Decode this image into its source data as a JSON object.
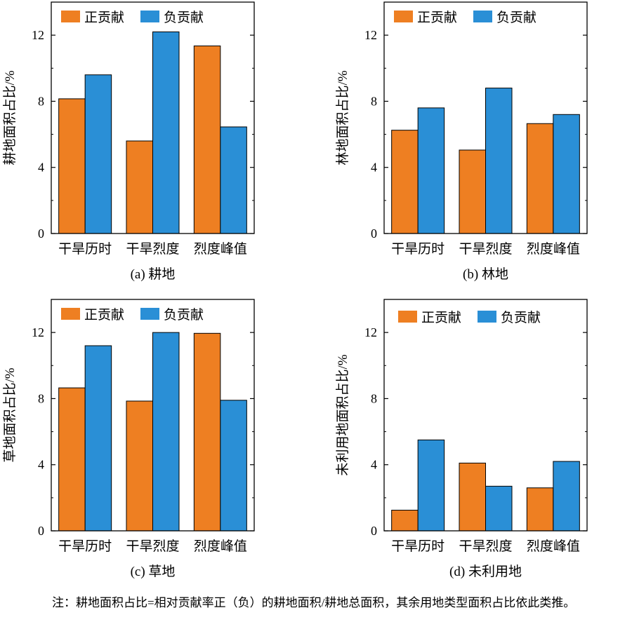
{
  "colors": {
    "positive": "#EE7F22",
    "negative": "#2A8FD6"
  },
  "note": "注：耕地面积占比=相对贡献率正（负）的耕地面积/耕地总面积，其余用地类型面积占比依此类推。",
  "chart_data": [
    {
      "type": "bar",
      "caption": "(a) 耕地",
      "ylabel": "耕地面积占比/%",
      "categories": [
        "干旱历时",
        "干旱烈度",
        "烈度峰值"
      ],
      "ylim": [
        0,
        14
      ],
      "yticks": [
        0,
        4,
        8,
        12
      ],
      "legend": "top-left",
      "series": [
        {
          "name": "正贡献",
          "values": [
            8.15,
            5.6,
            11.35
          ]
        },
        {
          "name": "负贡献",
          "values": [
            9.6,
            12.2,
            6.45
          ]
        }
      ]
    },
    {
      "type": "bar",
      "caption": "(b) 林地",
      "ylabel": "林地面积占比/%",
      "categories": [
        "干旱历时",
        "干旱烈度",
        "烈度峰值"
      ],
      "ylim": [
        0,
        14
      ],
      "yticks": [
        0,
        4,
        8,
        12
      ],
      "legend": "top-left",
      "series": [
        {
          "name": "正贡献",
          "values": [
            6.25,
            5.05,
            6.65
          ]
        },
        {
          "name": "负贡献",
          "values": [
            7.6,
            8.8,
            7.2
          ]
        }
      ]
    },
    {
      "type": "bar",
      "caption": "(c) 草地",
      "ylabel": "草地面积占比/%",
      "categories": [
        "干旱历时",
        "干旱烈度",
        "烈度峰值"
      ],
      "ylim": [
        0,
        14
      ],
      "yticks": [
        0,
        4,
        8,
        12
      ],
      "legend": "top-left",
      "series": [
        {
          "name": "正贡献",
          "values": [
            8.65,
            7.85,
            11.95
          ]
        },
        {
          "name": "负贡献",
          "values": [
            11.2,
            12.0,
            7.9
          ]
        }
      ]
    },
    {
      "type": "bar",
      "caption": "(d) 未利用地",
      "ylabel": "未利用地面积占比/%",
      "categories": [
        "干旱历时",
        "干旱烈度",
        "烈度峰值"
      ],
      "ylim": [
        0,
        14
      ],
      "yticks": [
        0,
        4,
        8,
        12
      ],
      "legend": "top-left",
      "series": [
        {
          "name": "正贡献",
          "values": [
            1.25,
            4.1,
            2.6
          ]
        },
        {
          "name": "负贡献",
          "values": [
            5.5,
            2.7,
            4.2
          ]
        }
      ]
    }
  ]
}
